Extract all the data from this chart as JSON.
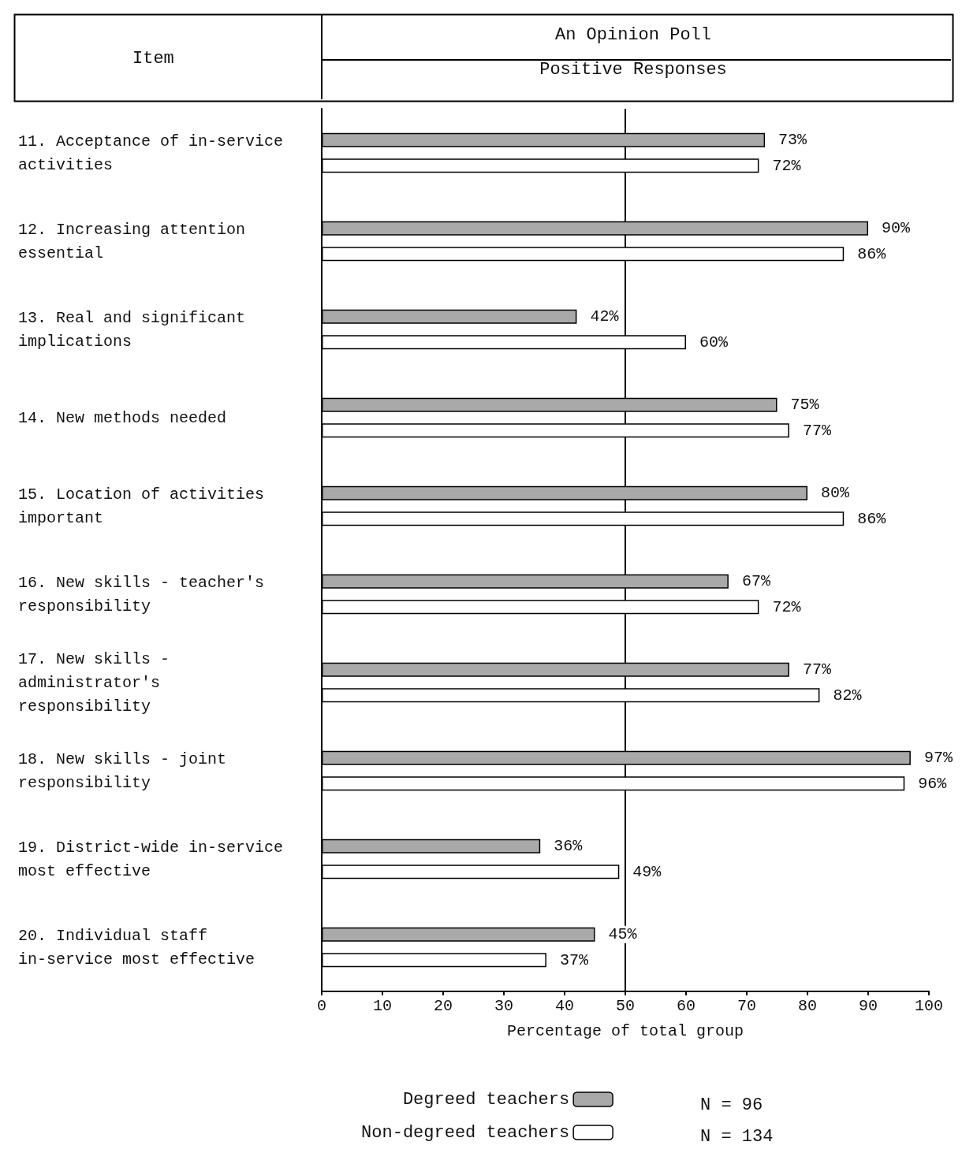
{
  "chart_data": {
    "type": "bar",
    "orientation": "horizontal",
    "title": "An Opinion Poll",
    "subtitle": "Positive Responses",
    "ylabel": "Item",
    "xlabel": "Percentage of total group",
    "categories": [
      "11. Acceptance of in-service activities",
      "12. Increasing attention essential",
      "13. Real and significant implications",
      "14. New methods needed",
      "15. Location of activities important",
      "16. New skills - teacher's responsibility",
      "17. New skills - administrator's responsibility",
      "18. New skills - joint responsibility",
      "19. District-wide in-service most effective",
      "20. Individual staff in-service most effective"
    ],
    "series": [
      {
        "name": "Degreed teachers",
        "color": "#a9a9a9",
        "values": [
          73,
          90,
          42,
          75,
          80,
          67,
          77,
          97,
          36,
          45
        ],
        "value_labels": [
          "73%",
          "90%",
          "42%",
          "75%",
          "80%",
          "67%",
          "77%",
          "97%",
          "36%",
          "45%"
        ]
      },
      {
        "name": "Non-degreed teachers",
        "color": "#ffffff",
        "values": [
          72,
          86,
          60,
          77,
          86,
          72,
          82,
          96,
          49,
          37
        ],
        "value_labels": [
          "72%",
          "86%",
          "60%",
          "77%",
          "86%",
          "72%",
          "82%",
          "96%",
          "49%",
          "37%"
        ]
      }
    ],
    "xlim": [
      0,
      100
    ],
    "xticks": [
      0,
      10,
      20,
      30,
      40,
      50,
      60,
      70,
      80,
      90,
      100
    ],
    "grid": false,
    "legend": "bottom",
    "ref_lines": [
      {
        "axis": "x",
        "value": 50,
        "color": "#000000"
      }
    ],
    "annotations": [
      "N = 96",
      "N = 134"
    ]
  }
}
